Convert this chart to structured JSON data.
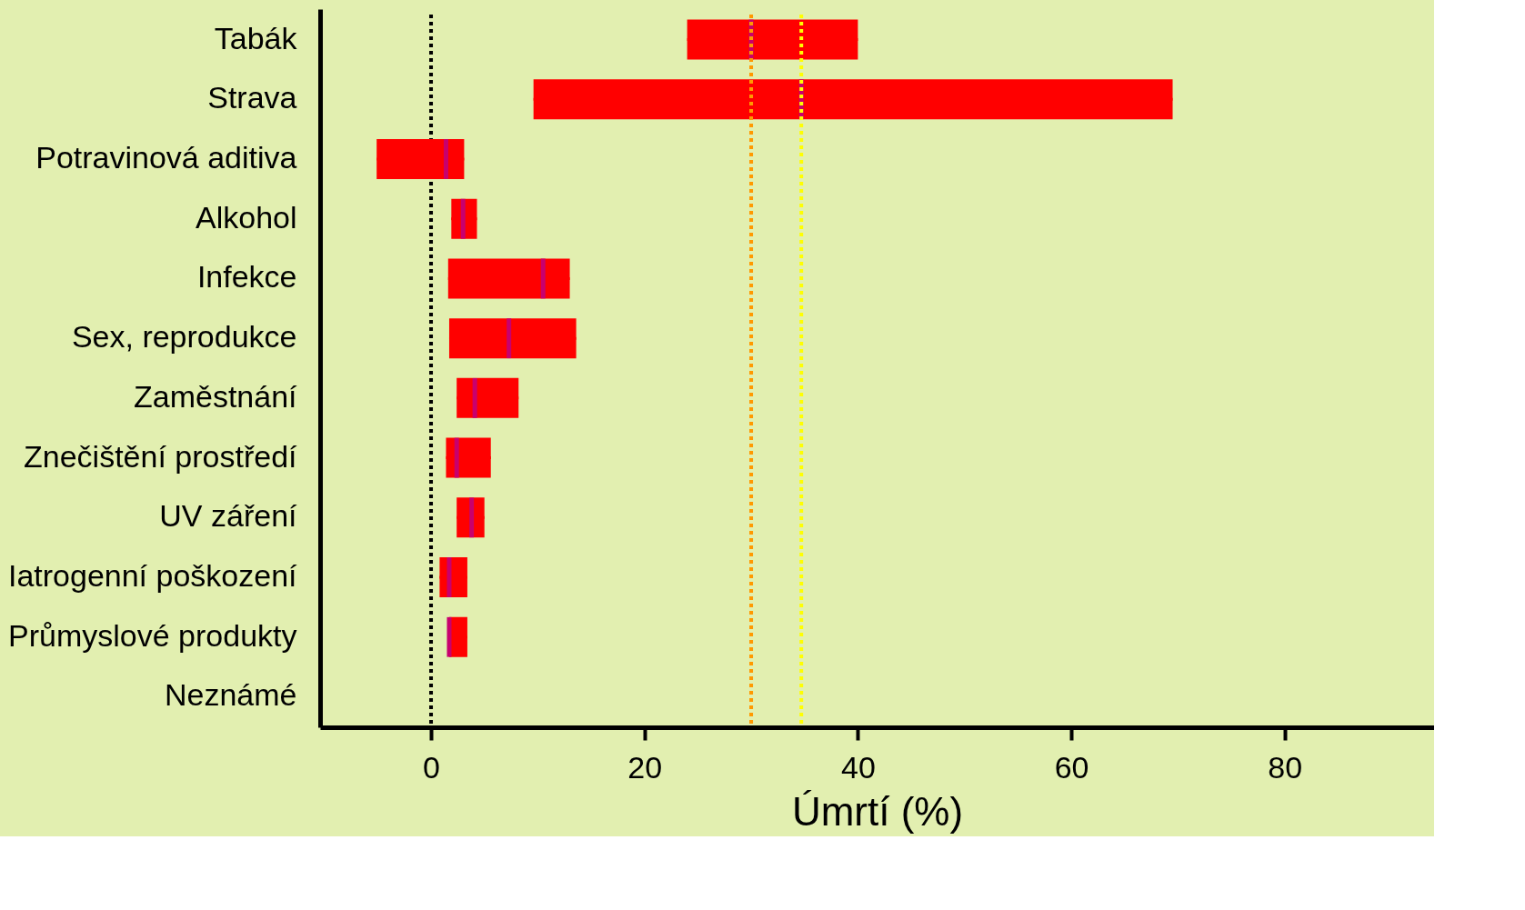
{
  "chart_data": {
    "type": "box",
    "orientation": "horizontal",
    "xlabel": "Úmrtí (%)",
    "categories": [
      "Tabák",
      "Strava",
      "Potravinová aditiva",
      "Alkohol",
      "Infekce",
      "Sex, reprodukce",
      "Zaměstnání",
      "Znečištění prostředí",
      "UV záření",
      "Iatrogenní poškození",
      "Průmyslové produkty",
      "Neznámé"
    ],
    "series": [
      {
        "color": "#ff0000",
        "boxes": [
          {
            "low": 24,
            "q1": 24,
            "median": 30,
            "q3": 40,
            "high": 40
          },
          {
            "low": 9.6,
            "q1": 9.6,
            "median": 34.7,
            "q3": 69.5,
            "high": 69.5
          },
          {
            "low": -5.1,
            "q1": -5.1,
            "median": 1.4,
            "q3": 3.1,
            "high": 3.1
          },
          {
            "low": 1.9,
            "q1": 1.9,
            "median": 3.0,
            "q3": 4.3,
            "high": 4.3
          },
          {
            "low": 1.6,
            "q1": 1.6,
            "median": 10.5,
            "q3": 13.0,
            "high": 13.0
          },
          {
            "low": 1.7,
            "q1": 1.7,
            "median": 7.3,
            "q3": 13.6,
            "high": 13.6
          },
          {
            "low": 2.4,
            "q1": 2.4,
            "median": 4.1,
            "q3": 8.2,
            "high": 8.2
          },
          {
            "low": 1.4,
            "q1": 1.4,
            "median": 2.4,
            "q3": 5.6,
            "high": 5.6
          },
          {
            "low": 2.4,
            "q1": 2.4,
            "median": 3.8,
            "q3": 5.0,
            "high": 5.0
          },
          {
            "low": 0.8,
            "q1": 0.8,
            "median": 1.7,
            "q3": 3.4,
            "high": 3.4
          },
          {
            "low": 1.7,
            "q1": 1.7,
            "median": 1.7,
            "q3": 3.4,
            "high": 3.4
          },
          null
        ]
      }
    ],
    "xlim": [
      -10.4,
      94
    ],
    "xticks": [
      0,
      20,
      40,
      60,
      80
    ],
    "grid": false,
    "ref_lines": [
      {
        "axis": "x",
        "value": 0,
        "color": "#000000",
        "line_style": "dotted"
      },
      {
        "axis": "x",
        "value": 30,
        "color": "#ff9900",
        "line_style": "dotted"
      },
      {
        "axis": "x",
        "value": 34.7,
        "color": "#ffff00",
        "line_style": "dotted"
      }
    ]
  }
}
